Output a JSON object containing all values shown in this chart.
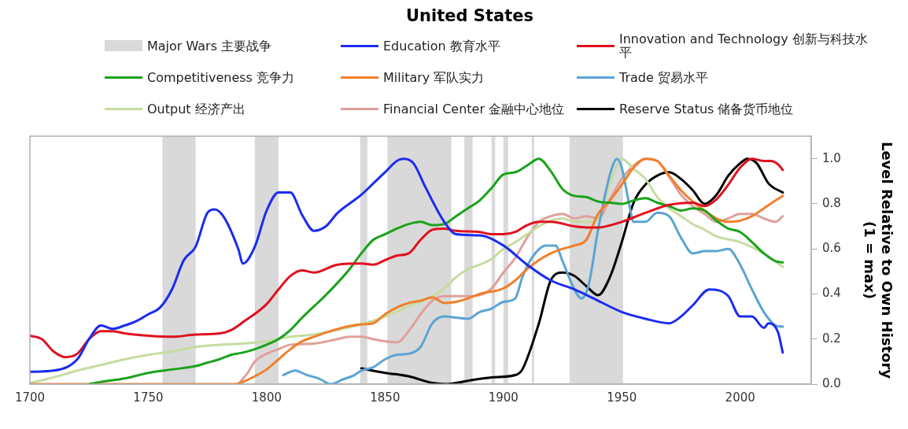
{
  "chart_data": {
    "type": "line",
    "title": "United States",
    "ylabel": "Level Relative to Own History\n(1 = max)",
    "xlim": [
      1700,
      2030
    ],
    "xticks": [
      1700,
      1750,
      1800,
      1850,
      1900,
      1950,
      2000
    ],
    "ylim": [
      0,
      1.1
    ],
    "yticks": [
      {
        "value": 0,
        "label": "0.0"
      },
      {
        "value": 0.2,
        "label": "0.2"
      },
      {
        "value": 0.4,
        "label": "0.4"
      },
      {
        "value": 0.6,
        "label": "0.6"
      },
      {
        "value": 0.8,
        "label": "0.8"
      },
      {
        "value": 1,
        "label": "1.0"
      }
    ],
    "grid": false,
    "legend": "top",
    "line_style": "solid",
    "marker": "none",
    "bands": [
      {
        "axis": "x",
        "from": 1756,
        "to": 1770,
        "label": "Major Wars 主要战争",
        "color": "#d9d9d9"
      },
      {
        "axis": "x",
        "from": 1795,
        "to": 1805,
        "color": "#d9d9d9"
      },
      {
        "axis": "x",
        "from": 1839.5,
        "to": 1842.5,
        "color": "#d9d9d9"
      },
      {
        "axis": "x",
        "from": 1851,
        "to": 1878,
        "color": "#d9d9d9"
      },
      {
        "axis": "x",
        "from": 1883.5,
        "to": 1887,
        "color": "#d9d9d9"
      },
      {
        "axis": "x",
        "from": 1895,
        "to": 1896.5,
        "color": "#d9d9d9"
      },
      {
        "axis": "x",
        "from": 1900,
        "to": 1902,
        "color": "#d9d9d9"
      },
      {
        "axis": "x",
        "from": 1912,
        "to": 1913,
        "color": "#d9d9d9"
      },
      {
        "axis": "x",
        "from": 1928,
        "to": 1950.5,
        "color": "#d9d9d9"
      }
    ],
    "series": [
      {
        "name": "Education 教育水平",
        "color": "#1a2cf0",
        "x": [
          1700,
          1710,
          1720,
          1725,
          1730,
          1735,
          1740,
          1745,
          1750,
          1755,
          1760,
          1765,
          1770,
          1775,
          1778,
          1782,
          1788,
          1790,
          1795,
          1800,
          1805,
          1810,
          1815,
          1820,
          1825,
          1830,
          1840,
          1845,
          1850,
          1855,
          1858,
          1862,
          1867,
          1875,
          1880,
          1890,
          1900,
          1910,
          1920,
          1930,
          1940,
          1950,
          1960,
          1970,
          1975,
          1980,
          1987,
          1995,
          2000,
          2005,
          2010,
          2012,
          2016,
          2018
        ],
        "values": [
          0.055,
          0.06,
          0.11,
          0.2,
          0.26,
          0.245,
          0.26,
          0.28,
          0.31,
          0.34,
          0.42,
          0.55,
          0.61,
          0.76,
          0.775,
          0.74,
          0.6,
          0.535,
          0.61,
          0.77,
          0.85,
          0.85,
          0.75,
          0.68,
          0.7,
          0.76,
          0.84,
          0.89,
          0.94,
          0.99,
          1.0,
          0.98,
          0.875,
          0.72,
          0.665,
          0.66,
          0.615,
          0.53,
          0.46,
          0.42,
          0.37,
          0.32,
          0.29,
          0.27,
          0.3,
          0.35,
          0.42,
          0.39,
          0.3,
          0.3,
          0.25,
          0.27,
          0.23,
          0.14
        ]
      },
      {
        "name": "Innovation and Technology 创新与科技水平",
        "color": "#e0101e",
        "x": [
          1700,
          1705,
          1710,
          1715,
          1720,
          1725,
          1730,
          1735,
          1740,
          1750,
          1760,
          1770,
          1780,
          1785,
          1790,
          1800,
          1805,
          1810,
          1815,
          1820,
          1830,
          1840,
          1845,
          1850,
          1855,
          1860,
          1865,
          1870,
          1875,
          1880,
          1890,
          1895,
          1900,
          1905,
          1910,
          1915,
          1920,
          1930,
          1935,
          1940,
          1950,
          1960,
          1970,
          1980,
          1985,
          1990,
          1995,
          2000,
          2005,
          2010,
          2013,
          2016,
          2018
        ],
        "values": [
          0.215,
          0.2,
          0.145,
          0.12,
          0.135,
          0.2,
          0.235,
          0.235,
          0.225,
          0.215,
          0.21,
          0.22,
          0.225,
          0.24,
          0.275,
          0.355,
          0.42,
          0.48,
          0.505,
          0.495,
          0.53,
          0.535,
          0.53,
          0.55,
          0.57,
          0.58,
          0.64,
          0.685,
          0.69,
          0.68,
          0.675,
          0.665,
          0.665,
          0.675,
          0.705,
          0.72,
          0.72,
          0.7,
          0.695,
          0.695,
          0.72,
          0.76,
          0.795,
          0.805,
          0.79,
          0.82,
          0.885,
          0.96,
          1.0,
          0.99,
          0.99,
          0.975,
          0.95
        ]
      },
      {
        "name": "Competitiveness 竞争力",
        "color": "#1aa31a",
        "x": [
          1725,
          1730,
          1740,
          1750,
          1760,
          1770,
          1775,
          1780,
          1785,
          1790,
          1795,
          1800,
          1805,
          1810,
          1815,
          1820,
          1825,
          1830,
          1835,
          1840,
          1845,
          1850,
          1855,
          1860,
          1865,
          1870,
          1875,
          1880,
          1885,
          1890,
          1895,
          1900,
          1905,
          1910,
          1915,
          1920,
          1925,
          1930,
          1935,
          1940,
          1945,
          1950,
          1955,
          1960,
          1965,
          1970,
          1975,
          1980,
          1985,
          1990,
          1995,
          2000,
          2005,
          2010,
          2015,
          2018
        ],
        "values": [
          0,
          0.01,
          0.025,
          0.05,
          0.065,
          0.08,
          0.095,
          0.11,
          0.13,
          0.14,
          0.155,
          0.175,
          0.2,
          0.24,
          0.295,
          0.345,
          0.395,
          0.45,
          0.51,
          0.58,
          0.64,
          0.665,
          0.69,
          0.71,
          0.72,
          0.705,
          0.71,
          0.745,
          0.78,
          0.815,
          0.87,
          0.93,
          0.94,
          0.97,
          1.0,
          0.945,
          0.865,
          0.835,
          0.83,
          0.81,
          0.805,
          0.8,
          0.815,
          0.825,
          0.805,
          0.79,
          0.77,
          0.78,
          0.77,
          0.725,
          0.69,
          0.675,
          0.63,
          0.58,
          0.545,
          0.54
        ]
      },
      {
        "name": "Military 军队实力",
        "color": "#f07f2a",
        "x": [
          1700,
          1787,
          1790,
          1795,
          1800,
          1805,
          1810,
          1815,
          1820,
          1830,
          1840,
          1845,
          1850,
          1855,
          1860,
          1865,
          1870,
          1875,
          1880,
          1885,
          1890,
          1900,
          1905,
          1910,
          1915,
          1920,
          1925,
          1930,
          1935,
          1940,
          1945,
          1950,
          1955,
          1960,
          1965,
          1970,
          1975,
          1980,
          1985,
          1990,
          1995,
          2000,
          2005,
          2010,
          2015,
          2018
        ],
        "values": [
          0,
          0,
          0.01,
          0.035,
          0.065,
          0.11,
          0.155,
          0.19,
          0.21,
          0.245,
          0.265,
          0.27,
          0.31,
          0.34,
          0.36,
          0.37,
          0.385,
          0.36,
          0.365,
          0.38,
          0.4,
          0.425,
          0.46,
          0.51,
          0.55,
          0.58,
          0.6,
          0.615,
          0.64,
          0.755,
          0.815,
          0.885,
          0.96,
          1.0,
          0.99,
          0.925,
          0.86,
          0.81,
          0.77,
          0.735,
          0.72,
          0.725,
          0.745,
          0.78,
          0.815,
          0.835
        ]
      },
      {
        "name": "Trade 贸易水平",
        "color": "#5ba4d4",
        "x": [
          1807,
          1812,
          1817,
          1822,
          1827,
          1832,
          1837,
          1840,
          1845,
          1850,
          1855,
          1860,
          1865,
          1870,
          1875,
          1880,
          1885,
          1890,
          1895,
          1900,
          1905,
          1908,
          1912,
          1918,
          1922,
          1925,
          1930,
          1933,
          1936,
          1940,
          1945,
          1948,
          1950,
          1953,
          1955,
          1960,
          1965,
          1970,
          1975,
          1980,
          1985,
          1990,
          1995,
          2000,
          2005,
          2010,
          2015,
          2018
        ],
        "values": [
          0.04,
          0.06,
          0.04,
          0.025,
          0,
          0.02,
          0.04,
          0.06,
          0.075,
          0.11,
          0.13,
          0.135,
          0.165,
          0.27,
          0.3,
          0.295,
          0.29,
          0.32,
          0.335,
          0.365,
          0.38,
          0.475,
          0.56,
          0.615,
          0.615,
          0.545,
          0.42,
          0.38,
          0.44,
          0.685,
          0.93,
          1.0,
          0.96,
          0.805,
          0.72,
          0.72,
          0.76,
          0.745,
          0.65,
          0.58,
          0.59,
          0.59,
          0.6,
          0.53,
          0.42,
          0.32,
          0.26,
          0.255
        ]
      },
      {
        "name": "Output 经济产出",
        "color": "#c5dc9f",
        "x": [
          1700,
          1710,
          1720,
          1730,
          1740,
          1750,
          1760,
          1770,
          1780,
          1790,
          1800,
          1810,
          1820,
          1830,
          1840,
          1850,
          1860,
          1870,
          1875,
          1880,
          1885,
          1890,
          1895,
          1900,
          1905,
          1910,
          1915,
          1920,
          1925,
          1930,
          1935,
          1940,
          1945,
          1950,
          1955,
          1960,
          1965,
          1970,
          1975,
          1980,
          1985,
          1990,
          2000,
          2010,
          2018
        ],
        "values": [
          0.005,
          0.03,
          0.06,
          0.085,
          0.11,
          0.13,
          0.145,
          0.165,
          0.175,
          0.18,
          0.19,
          0.21,
          0.22,
          0.24,
          0.265,
          0.3,
          0.345,
          0.39,
          0.425,
          0.475,
          0.51,
          0.53,
          0.555,
          0.6,
          0.63,
          0.665,
          0.7,
          0.725,
          0.735,
          0.72,
          0.72,
          0.735,
          0.89,
          1.0,
          0.955,
          0.91,
          0.83,
          0.78,
          0.745,
          0.71,
          0.685,
          0.655,
          0.63,
          0.58,
          0.52
        ]
      },
      {
        "name": "Financial Center 金融中心地位",
        "color": "#e0a09a",
        "x": [
          1788,
          1792,
          1795,
          1800,
          1805,
          1810,
          1820,
          1830,
          1835,
          1840,
          1845,
          1850,
          1855,
          1860,
          1865,
          1870,
          1875,
          1885,
          1890,
          1895,
          1900,
          1905,
          1910,
          1915,
          1920,
          1925,
          1930,
          1935,
          1940,
          1945,
          1950,
          1955,
          1960,
          1965,
          1970,
          1975,
          1980,
          1985,
          1990,
          1995,
          2000,
          2005,
          2010,
          2015,
          2018
        ],
        "values": [
          0,
          0.05,
          0.1,
          0.135,
          0.155,
          0.175,
          0.18,
          0.2,
          0.21,
          0.21,
          0.2,
          0.19,
          0.185,
          0.235,
          0.31,
          0.37,
          0.39,
          0.39,
          0.395,
          0.425,
          0.495,
          0.56,
          0.65,
          0.72,
          0.745,
          0.755,
          0.735,
          0.745,
          0.735,
          0.82,
          0.91,
          0.97,
          1.0,
          0.99,
          0.92,
          0.84,
          0.79,
          0.755,
          0.72,
          0.735,
          0.755,
          0.755,
          0.735,
          0.72,
          0.745
        ]
      },
      {
        "name": "Reserve Status 储备货币地位",
        "color": "#000000",
        "x": [
          1840,
          1850,
          1860,
          1870,
          1876,
          1885,
          1895,
          1905,
          1908,
          1915,
          1920,
          1925,
          1930,
          1935,
          1940,
          1945,
          1950,
          1955,
          1960,
          1965,
          1970,
          1975,
          1980,
          1985,
          1990,
          1995,
          2000,
          2003,
          2007,
          2012,
          2018
        ],
        "values": [
          0.07,
          0.05,
          0.035,
          0.005,
          0,
          0.015,
          0.03,
          0.04,
          0.065,
          0.27,
          0.46,
          0.495,
          0.48,
          0.435,
          0.395,
          0.475,
          0.63,
          0.805,
          0.885,
          0.925,
          0.94,
          0.91,
          0.86,
          0.8,
          0.84,
          0.925,
          0.98,
          1.0,
          0.98,
          0.89,
          0.85
        ]
      }
    ]
  }
}
